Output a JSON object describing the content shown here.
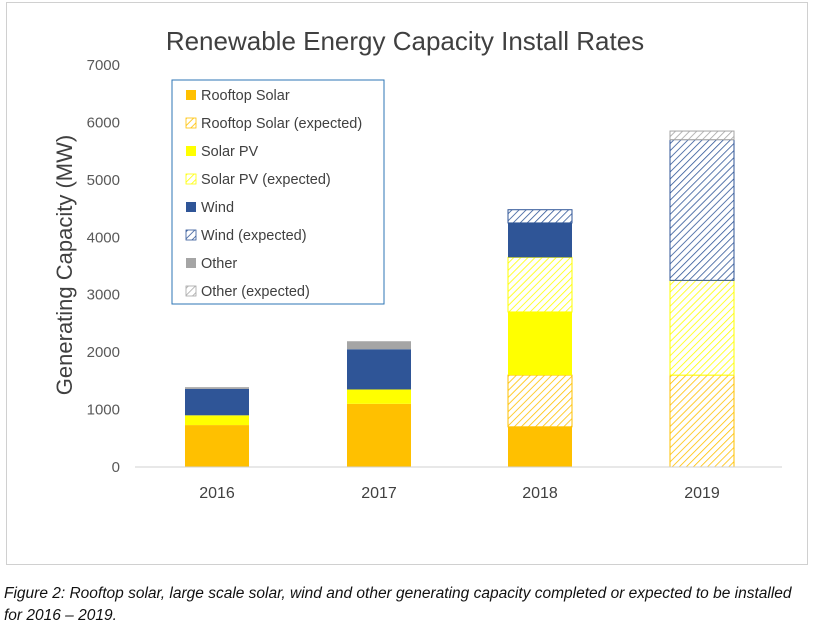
{
  "chart_data": {
    "type": "bar",
    "stacked": true,
    "title": "Renewable Energy Capacity Install Rates",
    "ylabel": "Generating Capacity (MW)",
    "xlabel": "",
    "ylim": [
      0,
      7000
    ],
    "yticks": [
      0,
      1000,
      2000,
      3000,
      4000,
      5000,
      6000,
      7000
    ],
    "categories": [
      "2016",
      "2017",
      "2018",
      "2019"
    ],
    "legend_position": "top-left",
    "grid": false,
    "series": [
      {
        "name": "Rooftop Solar",
        "color": "#ffc000",
        "pattern": "solid",
        "values": [
          730,
          1100,
          700,
          0
        ]
      },
      {
        "name": "Rooftop Solar (expected)",
        "color": "#ffc000",
        "pattern": "hatched",
        "values": [
          0,
          0,
          900,
          1600
        ]
      },
      {
        "name": "Solar PV",
        "color": "#ffff00",
        "pattern": "solid",
        "values": [
          170,
          250,
          1100,
          0
        ]
      },
      {
        "name": "Solar PV (expected)",
        "color": "#ffff00",
        "pattern": "hatched",
        "values": [
          0,
          0,
          950,
          1650
        ]
      },
      {
        "name": "Wind",
        "color": "#2f5597",
        "pattern": "solid",
        "values": [
          460,
          700,
          600,
          0
        ]
      },
      {
        "name": "Wind (expected)",
        "color": "#2f5597",
        "pattern": "hatched",
        "values": [
          0,
          0,
          230,
          2450
        ]
      },
      {
        "name": "Other",
        "color": "#a5a5a5",
        "pattern": "solid",
        "values": [
          30,
          140,
          0,
          0
        ]
      },
      {
        "name": "Other (expected)",
        "color": "#a5a5a5",
        "pattern": "hatched",
        "values": [
          0,
          0,
          0,
          150
        ]
      }
    ]
  },
  "caption": "Figure 2:  Rooftop solar, large scale solar, wind and other generating capacity completed or expected to be installed for 2016 – 2019."
}
